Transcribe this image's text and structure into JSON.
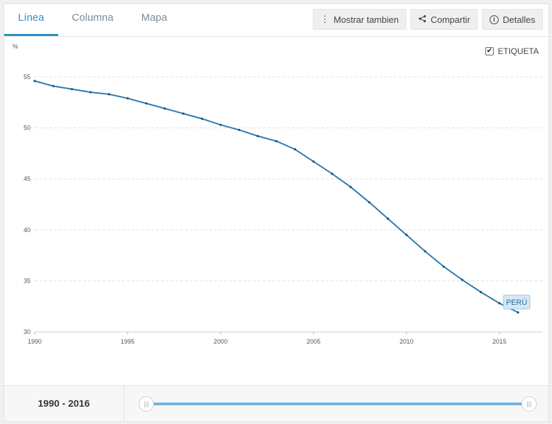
{
  "tabs": [
    {
      "label": "Línea",
      "active": true
    },
    {
      "label": "Columna",
      "active": false
    },
    {
      "label": "Mapa",
      "active": false
    }
  ],
  "toolbar": {
    "more_label": "Mostrar tambien",
    "more_icon": "more-vertical-icon",
    "share_label": "Compartir",
    "share_icon": "share-icon",
    "details_label": "Detalles",
    "details_icon": "info-icon"
  },
  "label_toggle": {
    "label": "ETIQUETA",
    "checked": true
  },
  "footer": {
    "range_label": "1990 - 2016",
    "range_start": 1990,
    "range_end": 2016
  },
  "colors": {
    "line": "#2b7bb4",
    "accent": "#2a8fc4",
    "slider": "#6fb4dd",
    "series_label_bg": "#d6e8f5"
  },
  "chart_data": {
    "type": "line",
    "ylabel": "%",
    "xlim": [
      1990,
      2016
    ],
    "ylim": [
      30,
      55
    ],
    "x_ticks": [
      1990,
      1995,
      2000,
      2005,
      2010,
      2015
    ],
    "y_ticks": [
      30,
      35,
      40,
      45,
      50,
      55
    ],
    "grid": true,
    "series": [
      {
        "name": "PERÚ",
        "x": [
          1990,
          1991,
          1992,
          1993,
          1994,
          1995,
          1996,
          1997,
          1998,
          1999,
          2000,
          2001,
          2002,
          2003,
          2004,
          2005,
          2006,
          2007,
          2008,
          2009,
          2010,
          2011,
          2012,
          2013,
          2014,
          2015,
          2016
        ],
        "y": [
          54.6,
          54.1,
          53.8,
          53.5,
          53.3,
          52.9,
          52.4,
          51.9,
          51.4,
          50.9,
          50.3,
          49.8,
          49.2,
          48.7,
          47.9,
          46.7,
          45.5,
          44.2,
          42.7,
          41.1,
          39.5,
          37.9,
          36.4,
          35.1,
          33.9,
          32.8,
          31.9
        ]
      }
    ]
  }
}
